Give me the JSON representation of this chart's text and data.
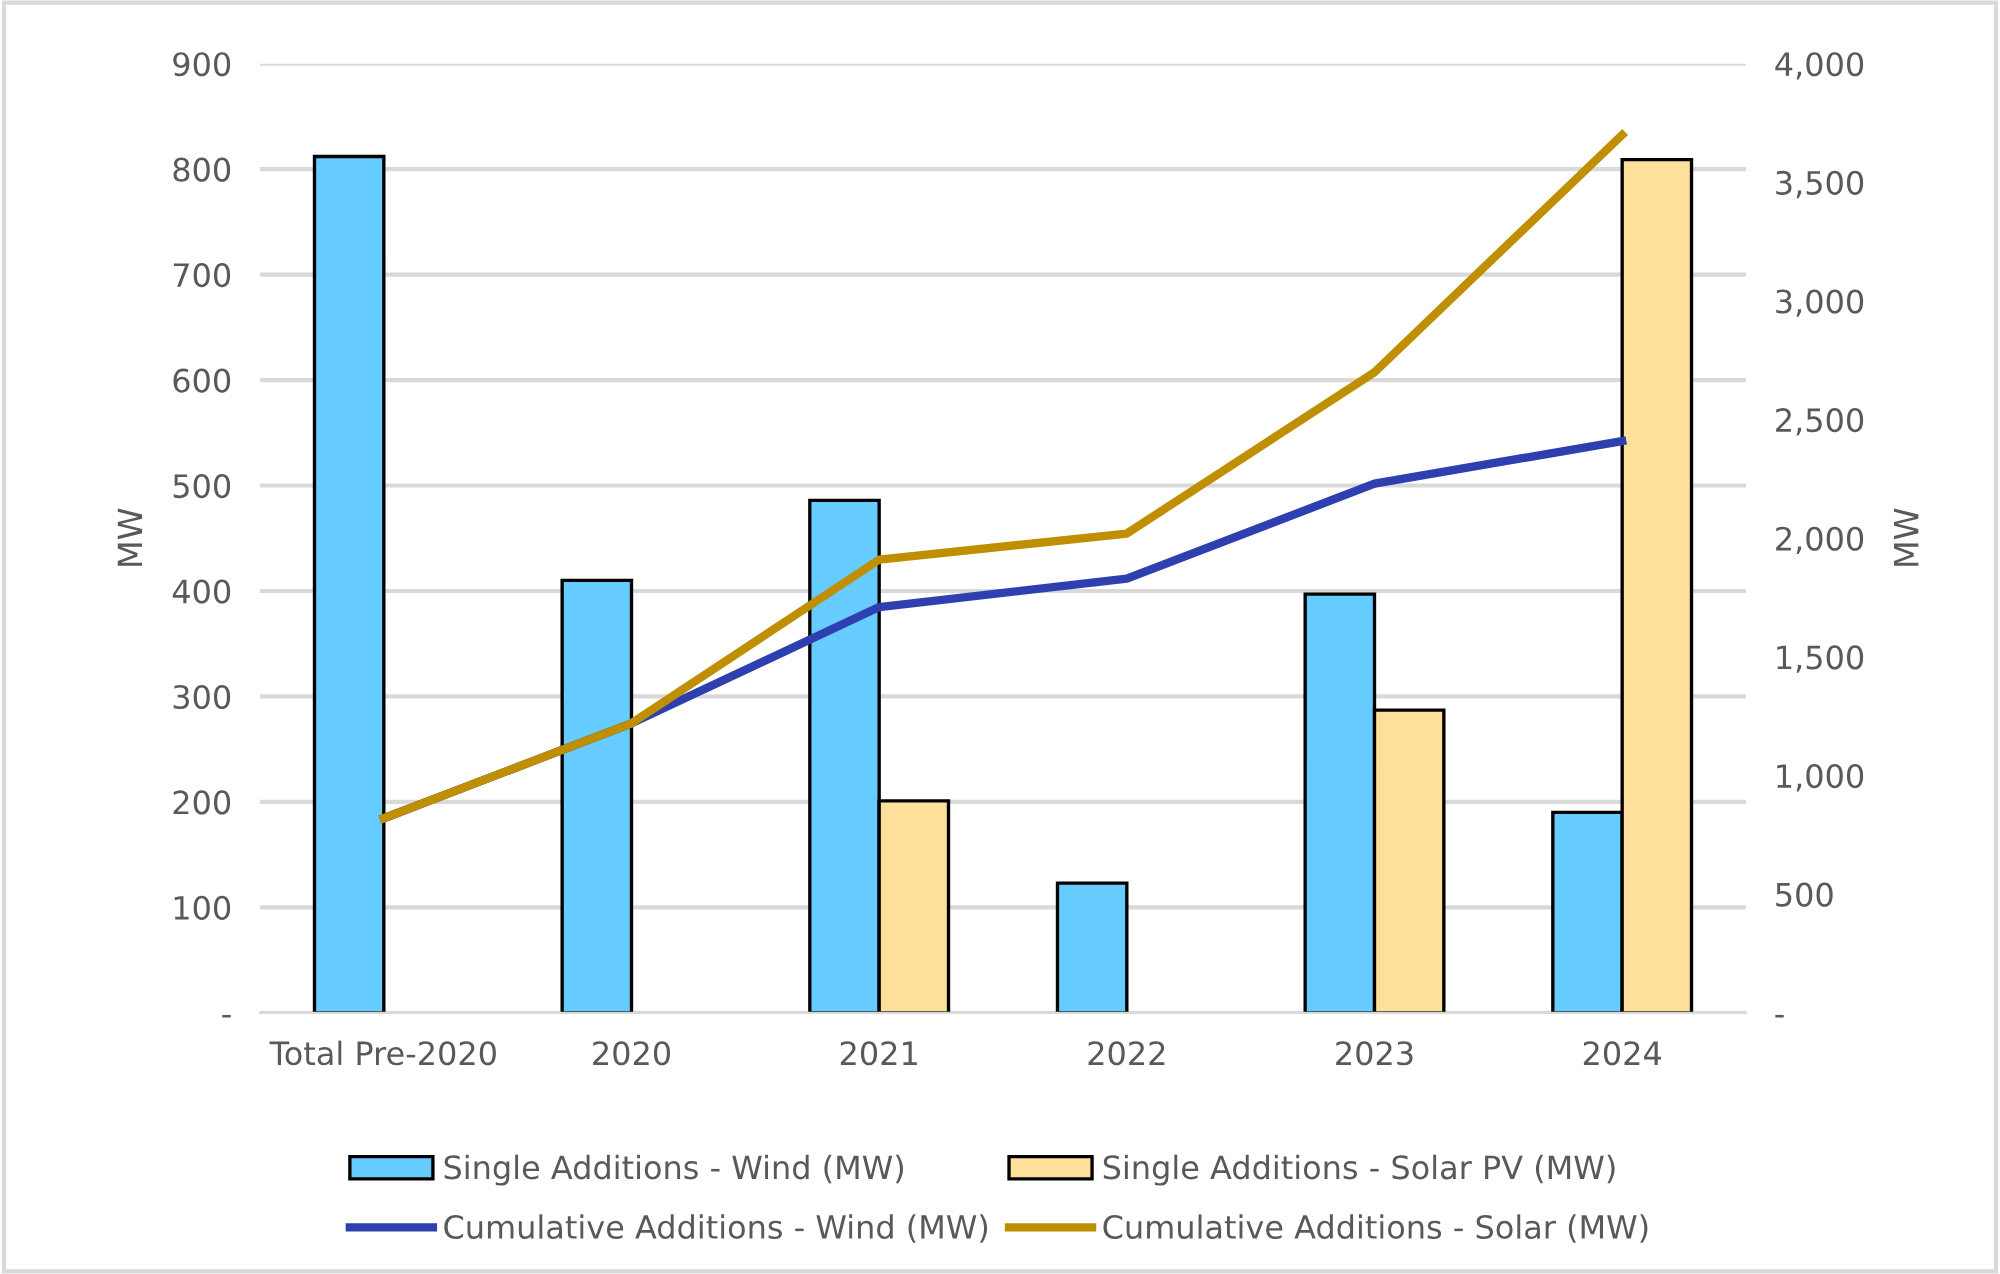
{
  "chart_data": {
    "type": "bar",
    "categories": [
      "Total Pre-2020",
      "2020",
      "2021",
      "2022",
      "2023",
      "2024"
    ],
    "series": [
      {
        "name": "Single Additions - Wind (MW)",
        "color": "#66ccff",
        "values": [
          812,
          410,
          486,
          123,
          397,
          190
        ]
      },
      {
        "name": "Single Additions - Solar PV (MW)",
        "color": "#ffe09a",
        "values": [
          null,
          null,
          201,
          null,
          287,
          809
        ]
      },
      {
        "name": "Cumulative Additions - Wind (MW)",
        "type": "line",
        "axis": "y2",
        "color": "#2e3fb0",
        "values": [
          820,
          1220,
          1710,
          1830,
          2230,
          2410
        ]
      },
      {
        "name": "Cumulative Additions - Solar (MW)",
        "type": "line",
        "axis": "y2",
        "color": "#bf8f00",
        "values": [
          820,
          1220,
          1910,
          2020,
          2700,
          3700
        ]
      }
    ],
    "ylabel": "MW",
    "y2label": "MW",
    "ylim": [
      0,
      900
    ],
    "yticks": [
      {
        "value": 0,
        "label": "-"
      },
      100,
      200,
      300,
      400,
      500,
      600,
      700,
      800,
      900
    ],
    "y2lim": [
      0,
      4000
    ],
    "y2ticks": [
      {
        "value": 0,
        "label": "-"
      },
      {
        "value": 500,
        "label": "500"
      },
      {
        "value": 1000,
        "label": "1,000"
      },
      {
        "value": 1500,
        "label": "1,500"
      },
      {
        "value": 2000,
        "label": "2,000"
      },
      {
        "value": 2500,
        "label": "2,500"
      },
      {
        "value": 3000,
        "label": "3,000"
      },
      {
        "value": 3500,
        "label": "3,500"
      },
      {
        "value": 4000,
        "label": "4,000"
      }
    ],
    "grid": "y",
    "legend": "bottom",
    "marker": "none",
    "line_style": "solid"
  }
}
